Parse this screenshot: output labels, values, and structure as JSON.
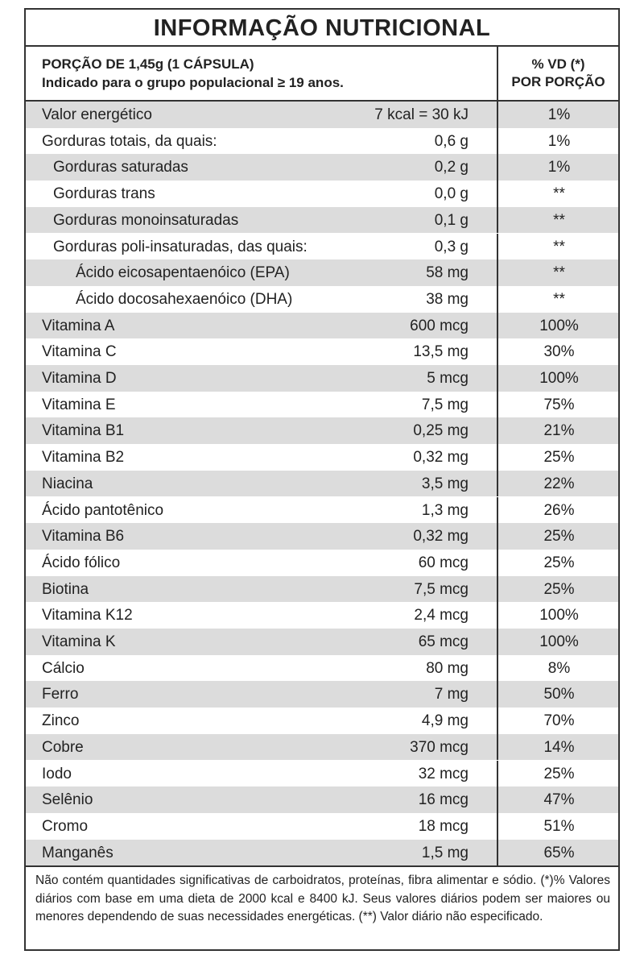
{
  "header": {
    "title": "INFORMAÇÃO NUTRICIONAL",
    "portion": "PORÇÃO DE 1,45g (1 CÁPSULA)",
    "population": "Indicado para o grupo populacional ≥ 19 anos.",
    "vd_line1": "% VD (*)",
    "vd_line2": "POR PORÇÃO"
  },
  "table": {
    "rows": [
      [
        "Valor energético",
        "7 kcal = 30 kJ",
        "1%"
      ],
      [
        "Gorduras totais, da quais:",
        "0,6 g",
        "1%"
      ],
      [
        "Gorduras saturadas",
        "0,2 g",
        "1%"
      ],
      [
        "Gorduras trans",
        "0,0 g",
        "**"
      ],
      [
        "Gorduras monoinsaturadas",
        "0,1 g",
        "**"
      ],
      [
        "Gorduras poli-insaturadas, das quais:",
        "0,3 g",
        "**"
      ],
      [
        "Ácido eicosapentaenóico (EPA)",
        "58 mg",
        "**"
      ],
      [
        "Ácido docosahexaenóico (DHA)",
        "38 mg",
        "**"
      ],
      [
        "Vitamina A",
        "600 mcg",
        "100%"
      ],
      [
        "Vitamina C",
        "13,5 mg",
        "30%"
      ],
      [
        "Vitamina D",
        "5 mcg",
        "100%"
      ],
      [
        "Vitamina E",
        "7,5 mg",
        "75%"
      ],
      [
        "Vitamina B1",
        "0,25 mg",
        "21%"
      ],
      [
        "Vitamina B2",
        "0,32 mg",
        "25%"
      ],
      [
        "Niacina",
        "3,5 mg",
        "22%"
      ],
      [
        "Ácido pantotênico",
        "1,3 mg",
        "26%"
      ],
      [
        "Vitamina B6",
        "0,32 mg",
        "25%"
      ],
      [
        "Ácido fólico",
        "60 mcg",
        "25%"
      ],
      [
        "Biotina",
        "7,5 mcg",
        "25%"
      ],
      [
        "Vitamina K12",
        "2,4 mcg",
        "100%"
      ],
      [
        "Vitamina K",
        "65 mcg",
        "100%"
      ],
      [
        "Cálcio",
        "80 mg",
        "8%"
      ],
      [
        "Ferro",
        "7 mg",
        "50%"
      ],
      [
        "Zinco",
        "4,9 mg",
        "70%"
      ],
      [
        "Cobre",
        "370 mcg",
        "14%"
      ],
      [
        "Iodo",
        "32 mcg",
        "25%"
      ],
      [
        "Selênio",
        "16 mcg",
        "47%"
      ],
      [
        "Cromo",
        "18 mcg",
        "51%"
      ],
      [
        "Manganês",
        "1,5 mg",
        "65%"
      ]
    ]
  },
  "footer": {
    "note": "Não contém quantidades significativas de carboidratos, proteínas, fibra alimentar e sódio. (*)% Valores diários com base em uma dieta de 2000 kcal e 8400 kJ. Seus valores diários podem ser maiores ou menores dependendo de suas necessidades energéticas. (**) Valor diário não especificado."
  }
}
